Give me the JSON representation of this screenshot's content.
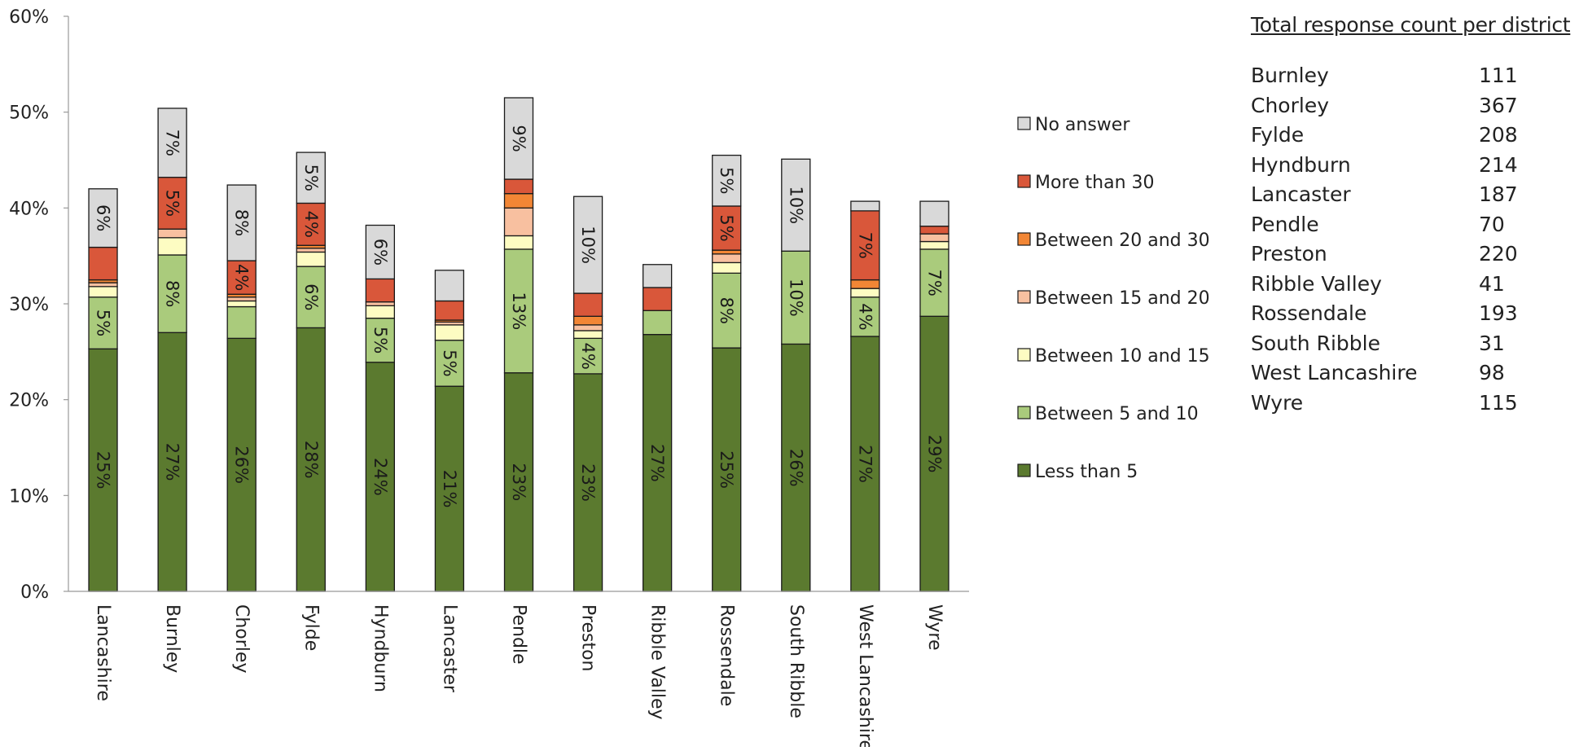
{
  "chart_data": {
    "type": "bar",
    "stacked": true,
    "categories": [
      "Lancashire",
      "Burnley",
      "Chorley",
      "Fylde",
      "Hyndburn",
      "Lancaster",
      "Pendle",
      "Preston",
      "Ribble Valley",
      "Rossendale",
      "South Ribble",
      "West Lancashire",
      "Wyre"
    ],
    "series": [
      {
        "name": "Less than 5",
        "color": "#5b7a2f",
        "values": [
          25.3,
          27.0,
          26.4,
          27.5,
          23.9,
          21.4,
          22.8,
          22.7,
          26.8,
          25.4,
          25.8,
          26.6,
          28.7
        ]
      },
      {
        "name": "Between 5 and 10",
        "color": "#aacb7c",
        "values": [
          5.4,
          8.1,
          3.3,
          6.4,
          4.6,
          4.8,
          12.9,
          3.7,
          2.5,
          7.8,
          9.7,
          4.1,
          7.0
        ]
      },
      {
        "name": "Between 10 and 15",
        "color": "#fdfcc2",
        "values": [
          1.1,
          1.8,
          0.6,
          1.5,
          1.3,
          1.6,
          1.4,
          0.8,
          0.0,
          1.1,
          0.0,
          0.9,
          0.8
        ]
      },
      {
        "name": "Between 15 and 20",
        "color": "#f8c0a0",
        "values": [
          0.4,
          0.9,
          0.4,
          0.4,
          0.4,
          0.3,
          2.9,
          0.6,
          0.0,
          0.9,
          0.0,
          0.0,
          0.8
        ]
      },
      {
        "name": "Between 20 and 30",
        "color": "#f28635",
        "values": [
          0.3,
          0.0,
          0.3,
          0.3,
          0.0,
          0.2,
          1.5,
          0.9,
          0.0,
          0.4,
          0.0,
          0.9,
          0.0
        ]
      },
      {
        "name": "More than 30",
        "color": "#d9573a",
        "values": [
          3.4,
          5.4,
          3.5,
          4.4,
          2.4,
          2.0,
          1.5,
          2.4,
          2.4,
          4.6,
          0.0,
          7.2,
          0.8
        ]
      },
      {
        "name": "No answer",
        "color": "#d9d9d9",
        "values": [
          6.1,
          7.2,
          7.9,
          5.3,
          5.6,
          3.2,
          8.5,
          10.1,
          2.4,
          5.3,
          9.6,
          1.0,
          2.6
        ]
      }
    ],
    "labels": [
      {
        "category": "Lancashire",
        "series": "Less than 5",
        "text": "25%"
      },
      {
        "category": "Lancashire",
        "series": "Between 5 and 10",
        "text": "5%"
      },
      {
        "category": "Lancashire",
        "series": "No answer",
        "text": "6%"
      },
      {
        "category": "Burnley",
        "series": "Less than 5",
        "text": "27%"
      },
      {
        "category": "Burnley",
        "series": "Between 5 and 10",
        "text": "8%"
      },
      {
        "category": "Burnley",
        "series": "More than 30",
        "text": "5%"
      },
      {
        "category": "Burnley",
        "series": "No answer",
        "text": "7%"
      },
      {
        "category": "Chorley",
        "series": "Less than 5",
        "text": "26%"
      },
      {
        "category": "Chorley",
        "series": "More than 30",
        "text": "4%"
      },
      {
        "category": "Chorley",
        "series": "No answer",
        "text": "8%"
      },
      {
        "category": "Fylde",
        "series": "Less than 5",
        "text": "28%"
      },
      {
        "category": "Fylde",
        "series": "Between 5 and 10",
        "text": "6%"
      },
      {
        "category": "Fylde",
        "series": "More than 30",
        "text": "4%"
      },
      {
        "category": "Fylde",
        "series": "No answer",
        "text": "5%"
      },
      {
        "category": "Hyndburn",
        "series": "Less than 5",
        "text": "24%"
      },
      {
        "category": "Hyndburn",
        "series": "Between 5 and 10",
        "text": "5%"
      },
      {
        "category": "Hyndburn",
        "series": "No answer",
        "text": "6%"
      },
      {
        "category": "Lancaster",
        "series": "Less than 5",
        "text": "21%"
      },
      {
        "category": "Lancaster",
        "series": "Between 5 and 10",
        "text": "5%"
      },
      {
        "category": "Pendle",
        "series": "Less than 5",
        "text": "23%"
      },
      {
        "category": "Pendle",
        "series": "Between 5 and 10",
        "text": "13%"
      },
      {
        "category": "Pendle",
        "series": "No answer",
        "text": "9%"
      },
      {
        "category": "Preston",
        "series": "Less than 5",
        "text": "23%"
      },
      {
        "category": "Preston",
        "series": "Between 5 and 10",
        "text": "4%"
      },
      {
        "category": "Preston",
        "series": "No answer",
        "text": "10%"
      },
      {
        "category": "Ribble Valley",
        "series": "Less than 5",
        "text": "27%"
      },
      {
        "category": "Rossendale",
        "series": "Less than 5",
        "text": "25%"
      },
      {
        "category": "Rossendale",
        "series": "Between 5 and 10",
        "text": "8%"
      },
      {
        "category": "Rossendale",
        "series": "More than 30",
        "text": "5%"
      },
      {
        "category": "Rossendale",
        "series": "No answer",
        "text": "5%"
      },
      {
        "category": "South Ribble",
        "series": "Less than 5",
        "text": "26%"
      },
      {
        "category": "South Ribble",
        "series": "Between 5 and 10",
        "text": "10%"
      },
      {
        "category": "South Ribble",
        "series": "No answer",
        "text": "10%"
      },
      {
        "category": "West Lancashire",
        "series": "Less than 5",
        "text": "27%"
      },
      {
        "category": "West Lancashire",
        "series": "Between 5 and 10",
        "text": "4%"
      },
      {
        "category": "West Lancashire",
        "series": "More than 30",
        "text": "7%"
      },
      {
        "category": "Wyre",
        "series": "Less than 5",
        "text": "29%"
      },
      {
        "category": "Wyre",
        "series": "Between 5 and 10",
        "text": "7%"
      }
    ],
    "legend_order": [
      "No answer",
      "More than 30",
      "Between 20 and 30",
      "Between 15 and 20",
      "Between 10 and 15",
      "Between 5 and 10",
      "Less than 5"
    ],
    "ylim": [
      0,
      60
    ],
    "yticks": [
      0,
      10,
      20,
      30,
      40,
      50,
      60
    ],
    "ytick_labels": [
      "0%",
      "10%",
      "20%",
      "30%",
      "40%",
      "50%",
      "60%"
    ],
    "grid": false,
    "legend_position": "right",
    "title": "",
    "xlabel": "",
    "ylabel": ""
  },
  "side_table": {
    "title": "Total response count per district",
    "rows": [
      {
        "name": "Burnley",
        "count": "111"
      },
      {
        "name": "Chorley",
        "count": "367"
      },
      {
        "name": "Fylde",
        "count": "208"
      },
      {
        "name": "Hyndburn",
        "count": "214"
      },
      {
        "name": "Lancaster",
        "count": "187"
      },
      {
        "name": "Pendle",
        "count": "70"
      },
      {
        "name": "Preston",
        "count": "220"
      },
      {
        "name": "Ribble Valley",
        "count": "41"
      },
      {
        "name": "Rossendale",
        "count": "193"
      },
      {
        "name": "South Ribble",
        "count": "31"
      },
      {
        "name": "West Lancashire",
        "count": "98"
      },
      {
        "name": "Wyre",
        "count": "115"
      }
    ]
  }
}
